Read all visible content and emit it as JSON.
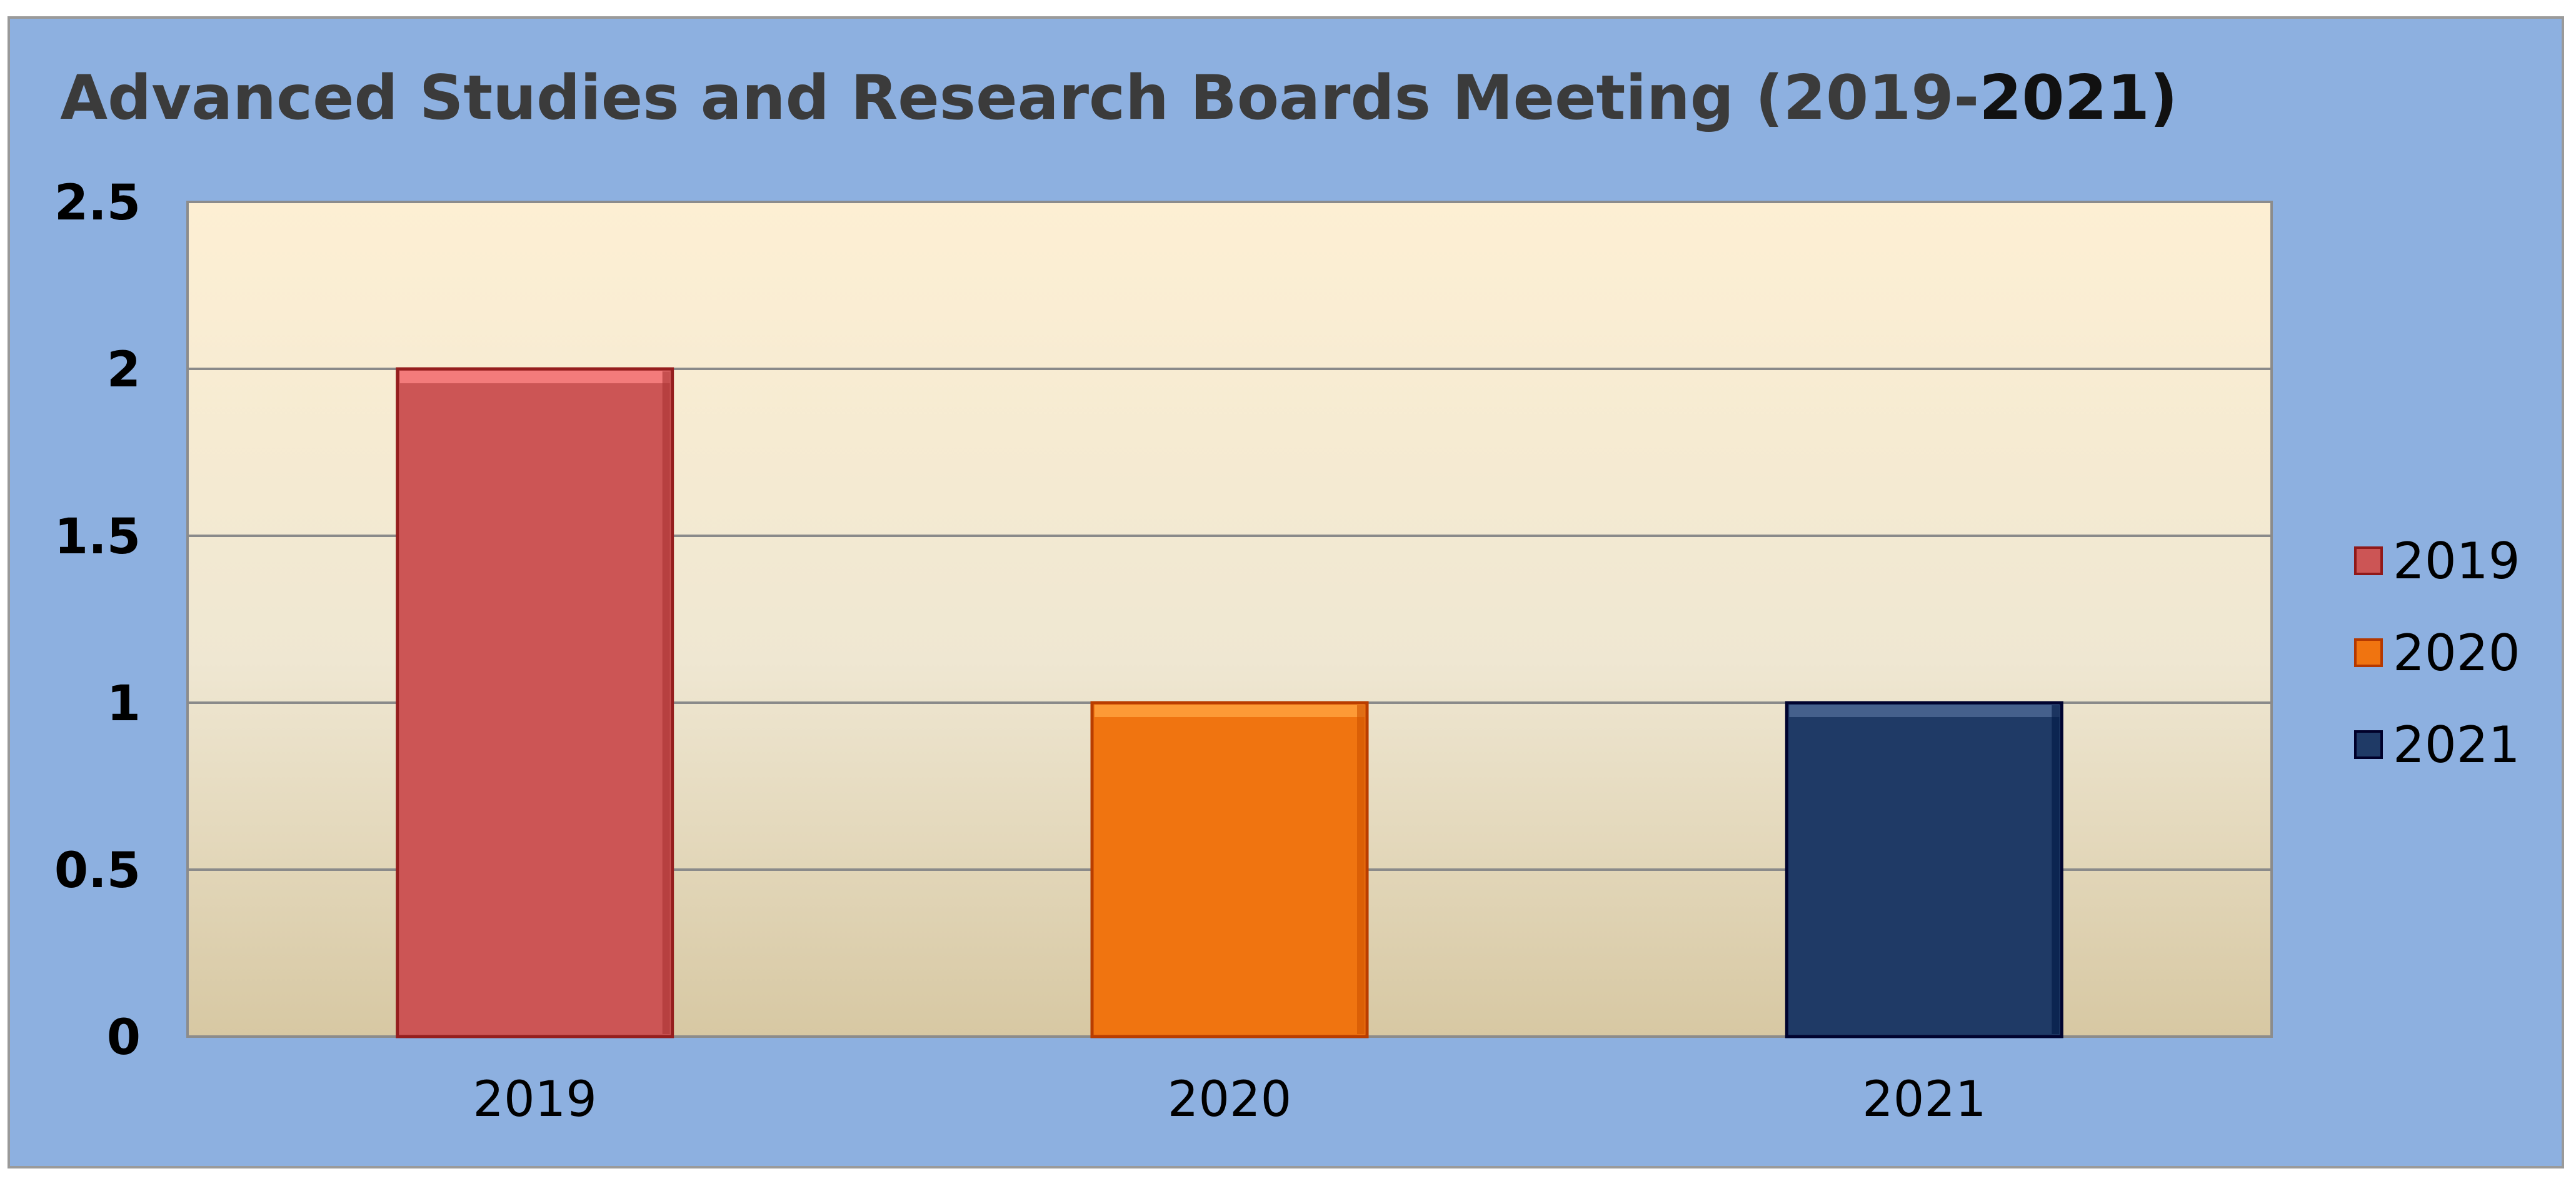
{
  "chart_data": {
    "type": "bar",
    "title_main": "Advanced Studies and Research Boards Meeting  (2019-",
    "title_end": "2021)",
    "xlabel": "",
    "ylabel": "",
    "categories": [
      "2019",
      "2020",
      "2021"
    ],
    "series": [
      {
        "name": "2019",
        "values": [
          2,
          null,
          null
        ],
        "color": "#cc5555"
      },
      {
        "name": "2020",
        "values": [
          null,
          1,
          null
        ],
        "color": "#f07410"
      },
      {
        "name": "2021",
        "values": [
          null,
          null,
          1
        ],
        "color": "#1f3a66"
      }
    ],
    "ylim": [
      0,
      2.5
    ],
    "yticks": [
      "0",
      "0.5",
      "1",
      "1.5",
      "2",
      "2.5"
    ],
    "grid": true,
    "legend_position": "right",
    "colors": {
      "frame_background": "#8db0e0",
      "plot_background_top": "#fdefd3",
      "plot_background_bottom": "#d7c8a3",
      "gridline": "#8a8a8a"
    }
  }
}
